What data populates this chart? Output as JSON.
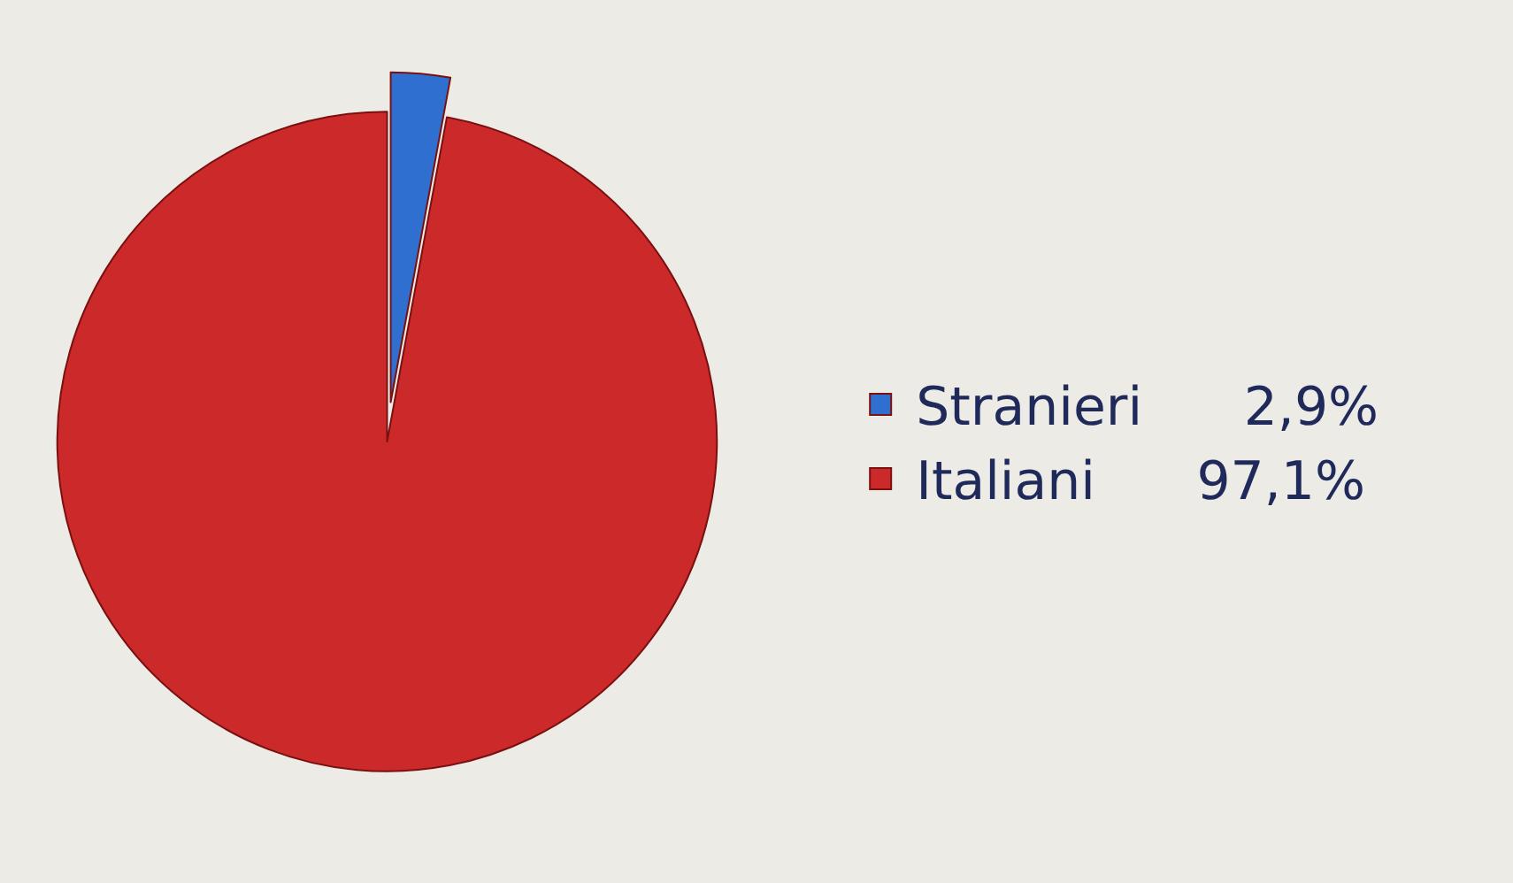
{
  "chart_data": {
    "type": "pie",
    "categories": [
      "Stranieri",
      "Italiani"
    ],
    "values": [
      2.9,
      97.1
    ],
    "colors": [
      "#2f6fd0",
      "#cc2a2a"
    ],
    "value_labels": [
      "2,9%",
      "97,1%"
    ],
    "legend": "right"
  }
}
